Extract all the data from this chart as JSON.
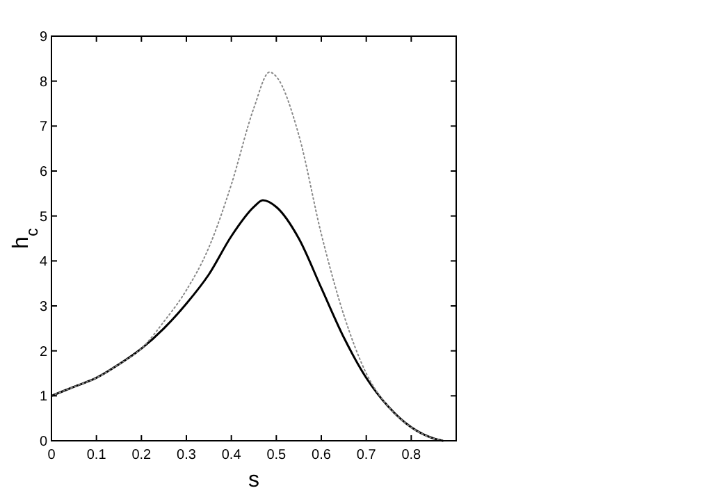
{
  "chart_data": {
    "type": "line",
    "xlabel": "s",
    "ylabel": "h$_{c}$",
    "xlim": [
      0,
      0.9
    ],
    "ylim": [
      0,
      9
    ],
    "xticks": [
      0,
      0.1,
      0.2,
      0.3,
      0.4,
      0.5,
      0.6,
      0.7,
      0.8
    ],
    "yticks": [
      0,
      1,
      2,
      3,
      4,
      5,
      6,
      7,
      8,
      9
    ],
    "grid": false,
    "series": [
      {
        "color": "#000000",
        "line_style": "solid",
        "x": [
          0,
          0.05,
          0.1,
          0.15,
          0.2,
          0.25,
          0.3,
          0.35,
          0.4,
          0.45,
          0.47,
          0.5,
          0.55,
          0.6,
          0.65,
          0.7,
          0.75,
          0.8,
          0.85,
          0.87
        ],
        "values": [
          1,
          1.2,
          1.4,
          1.7,
          2.05,
          2.5,
          3.05,
          3.7,
          4.55,
          5.2,
          5.35,
          5.2,
          4.5,
          3.4,
          2.3,
          1.4,
          0.75,
          0.3,
          0.05,
          0
        ]
      },
      {
        "color": "#888888",
        "line_style": "dotted",
        "x": [
          0,
          0.05,
          0.1,
          0.15,
          0.2,
          0.25,
          0.3,
          0.35,
          0.4,
          0.45,
          0.485,
          0.5,
          0.55,
          0.6,
          0.65,
          0.7,
          0.75,
          0.8,
          0.85,
          0.87
        ],
        "values": [
          1,
          1.2,
          1.4,
          1.7,
          2.05,
          2.65,
          3.35,
          4.3,
          5.7,
          7.4,
          8.2,
          8.1,
          6.8,
          4.6,
          2.8,
          1.5,
          0.75,
          0.3,
          0.05,
          0
        ]
      }
    ]
  }
}
